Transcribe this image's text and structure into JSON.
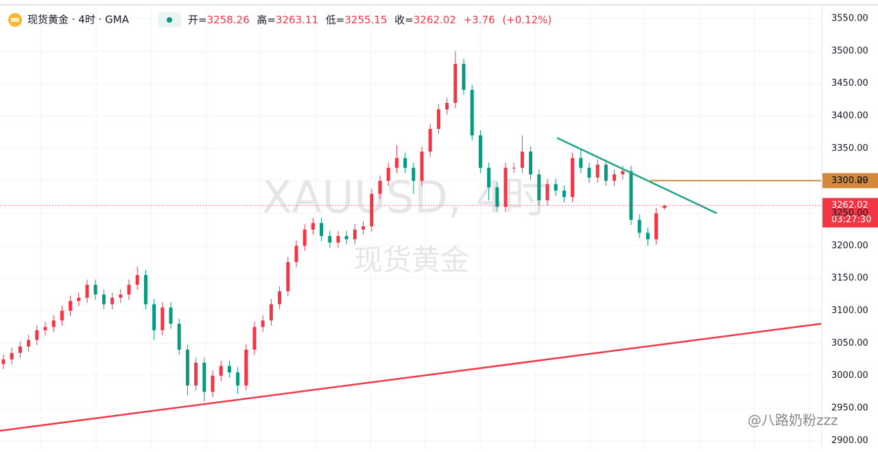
{
  "chart_data": {
    "type": "candlestick",
    "header": {
      "symbol": "现货黄金 · 4时 · GMA",
      "open_label": "开=",
      "open": 3258.26,
      "high_label": "高=",
      "high": 3263.11,
      "low_label": "低=",
      "low": 3255.15,
      "close_label": "收=",
      "close": 3262.02,
      "change": "+3.76",
      "change_pct": "(+0.12%)"
    },
    "watermark": "XAUUSD, 4时",
    "watermark_sub": "现货黄金",
    "credit": "@八路奶粉zzz",
    "up_color": "#f23645",
    "down_color": "#089981",
    "open": [
      3018,
      3025,
      3035,
      3045,
      3055,
      3070,
      3075,
      3085,
      3100,
      3115,
      3120,
      3140,
      3125,
      3110,
      3120,
      3125,
      3140,
      3155,
      3110,
      3070,
      3105,
      3080,
      3040,
      2985,
      3020,
      2975,
      3000,
      3015,
      3005,
      2985,
      3040,
      3075,
      3085,
      3110,
      3130,
      3175,
      3200,
      3225,
      3235,
      3215,
      3205,
      3215,
      3210,
      3225,
      3230,
      3280,
      3300,
      3320,
      3335,
      3320,
      3300,
      3345,
      3380,
      3410,
      3420,
      3480,
      3440,
      3370,
      3320,
      3290,
      3260,
      3320,
      3320,
      3345,
      3310,
      3270,
      3295,
      3285,
      3275,
      3335,
      3320,
      3305,
      3325,
      3300,
      3310,
      3315,
      3240,
      3220,
      3210,
      3258.26
    ],
    "high": [
      3033,
      3043,
      3053,
      3063,
      3078,
      3083,
      3093,
      3108,
      3123,
      3128,
      3148,
      3148,
      3133,
      3128,
      3133,
      3148,
      3168,
      3163,
      3118,
      3113,
      3113,
      3088,
      3048,
      3028,
      3028,
      3008,
      3023,
      3023,
      3013,
      3048,
      3083,
      3093,
      3118,
      3138,
      3183,
      3208,
      3233,
      3243,
      3243,
      3223,
      3223,
      3223,
      3233,
      3238,
      3288,
      3308,
      3328,
      3355,
      3343,
      3328,
      3353,
      3388,
      3418,
      3428,
      3500,
      3488,
      3448,
      3378,
      3328,
      3298,
      3328,
      3328,
      3370,
      3353,
      3318,
      3303,
      3303,
      3293,
      3343,
      3350,
      3328,
      3333,
      3333,
      3318,
      3323,
      3323,
      3248,
      3228,
      3258,
      3263.11
    ],
    "low": [
      3010,
      3017,
      3027,
      3037,
      3047,
      3062,
      3067,
      3077,
      3092,
      3107,
      3112,
      3117,
      3102,
      3102,
      3112,
      3117,
      3132,
      3102,
      3055,
      3062,
      3072,
      3032,
      2970,
      2977,
      2960,
      2967,
      2992,
      2997,
      2972,
      2977,
      3032,
      3067,
      3077,
      3102,
      3122,
      3167,
      3192,
      3217,
      3207,
      3197,
      3197,
      3202,
      3202,
      3217,
      3222,
      3272,
      3292,
      3312,
      3312,
      3280,
      3292,
      3337,
      3372,
      3402,
      3412,
      3432,
      3362,
      3312,
      3270,
      3252,
      3252,
      3312,
      3312,
      3302,
      3262,
      3262,
      3277,
      3267,
      3267,
      3312,
      3297,
      3297,
      3292,
      3292,
      3302,
      3232,
      3212,
      3200,
      3202,
      3255.15
    ],
    "close": [
      3025,
      3035,
      3045,
      3055,
      3070,
      3075,
      3085,
      3100,
      3115,
      3120,
      3140,
      3125,
      3110,
      3120,
      3125,
      3140,
      3155,
      3110,
      3070,
      3105,
      3080,
      3040,
      2985,
      3020,
      2975,
      3000,
      3015,
      3005,
      2985,
      3040,
      3075,
      3085,
      3110,
      3130,
      3175,
      3200,
      3225,
      3235,
      3215,
      3205,
      3215,
      3210,
      3225,
      3230,
      3280,
      3300,
      3320,
      3335,
      3320,
      3300,
      3345,
      3380,
      3410,
      3420,
      3480,
      3440,
      3370,
      3320,
      3290,
      3260,
      3320,
      3320,
      3345,
      3310,
      3270,
      3295,
      3285,
      3275,
      3335,
      3320,
      3305,
      3325,
      3300,
      3310,
      3315,
      3240,
      3220,
      3210,
      3250,
      3262.02
    ],
    "ylim": [
      2892,
      3570
    ],
    "yticks": [
      {
        "value": 2900,
        "label": "2900.00"
      },
      {
        "value": 2950,
        "label": "2950.00"
      },
      {
        "value": 3000,
        "label": "3000.00"
      },
      {
        "value": 3050,
        "label": "3050.00"
      },
      {
        "value": 3100,
        "label": "3100.00"
      },
      {
        "value": 3150,
        "label": "3150.00"
      },
      {
        "value": 3200,
        "label": "3200.00"
      },
      {
        "value": 3250,
        "label": "3250.00"
      },
      {
        "value": 3300,
        "label": "3300.00"
      },
      {
        "value": 3350,
        "label": "3350.00"
      },
      {
        "value": 3400,
        "label": "3400.00"
      },
      {
        "value": 3450,
        "label": "3450.00"
      },
      {
        "value": 3500,
        "label": "3500.00"
      },
      {
        "value": 3550,
        "label": "3550.00"
      }
    ],
    "levels": [
      {
        "value": 3300.29,
        "color": "#d4893a"
      },
      {
        "value": 3262.02,
        "color": "#f23645",
        "countdown": "03:27:30"
      }
    ],
    "grid": true
  }
}
